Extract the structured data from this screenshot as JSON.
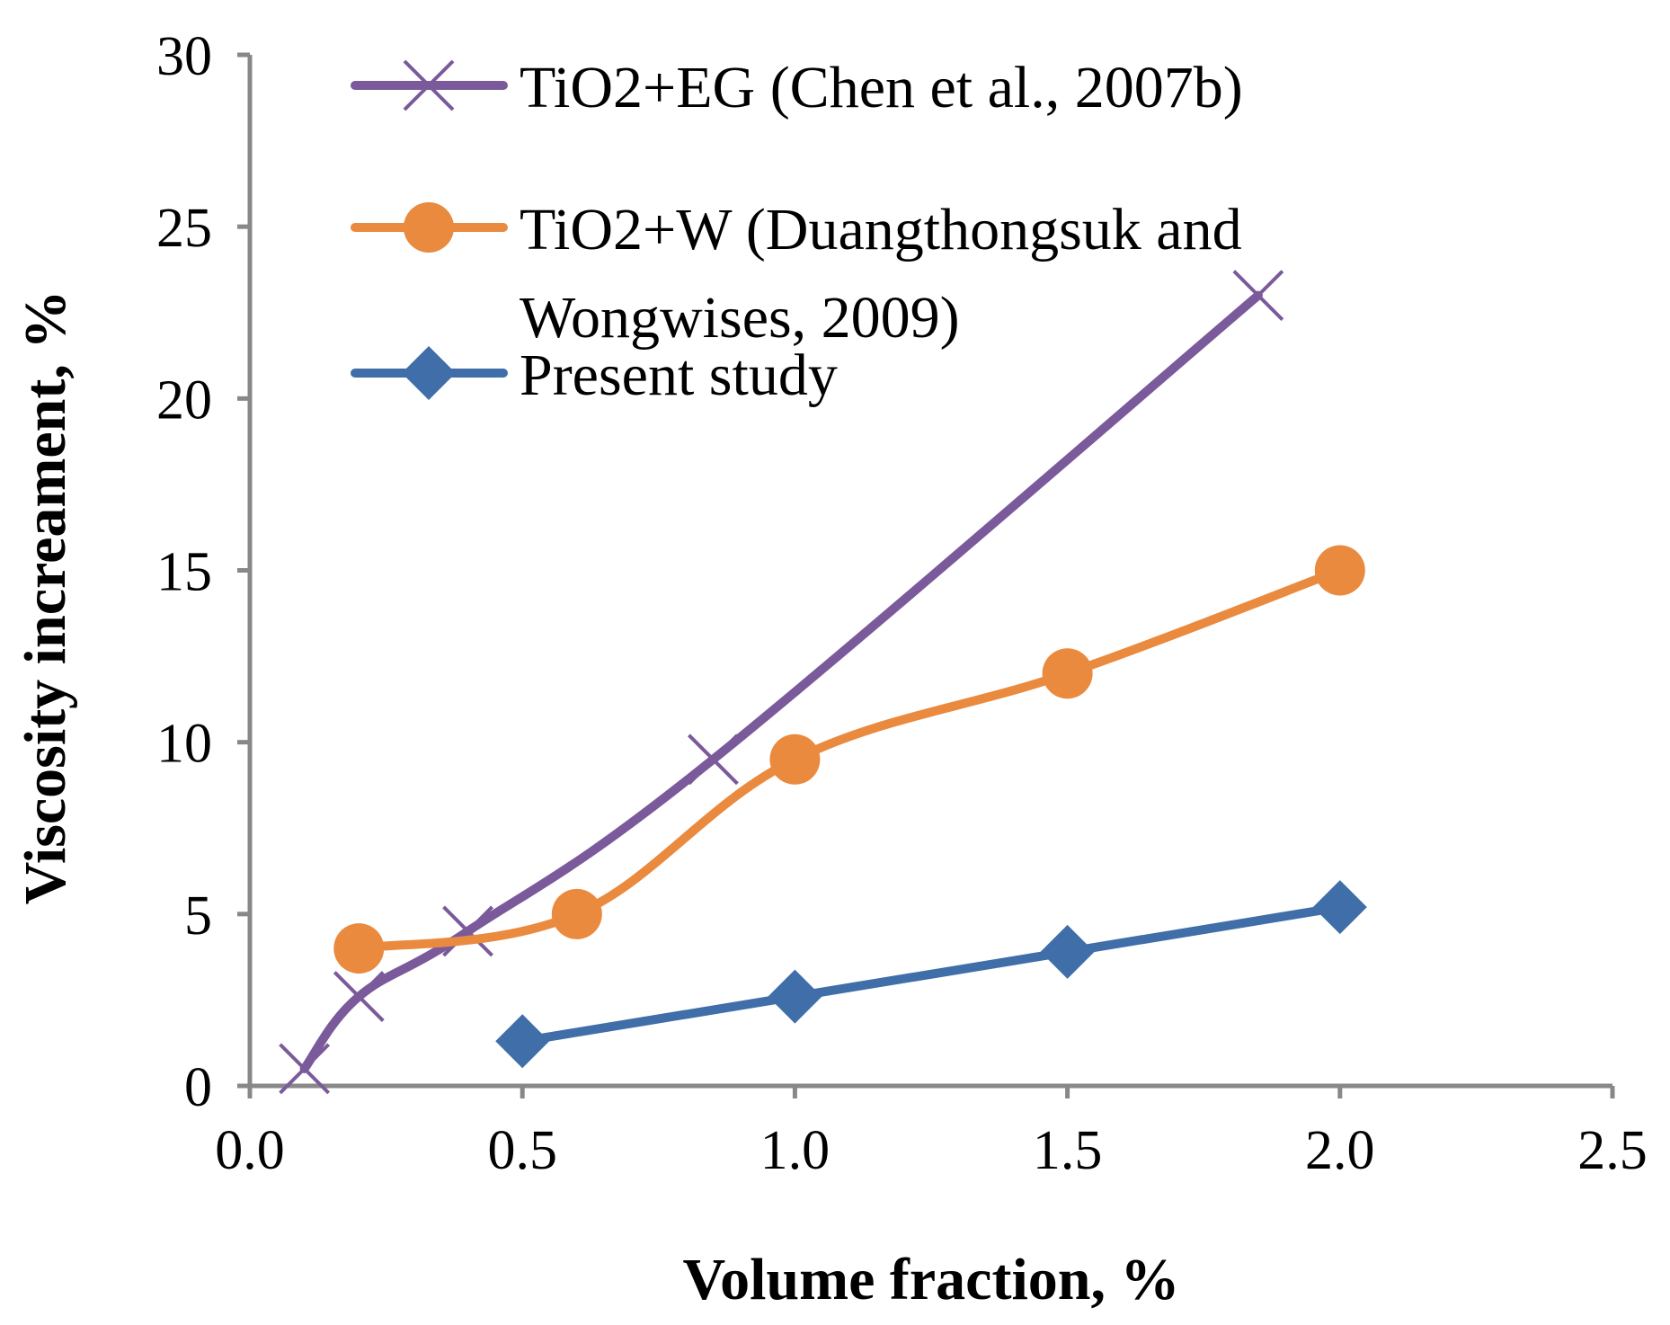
{
  "chart_data": {
    "type": "line",
    "title": "",
    "xlabel": "Volume fraction, %",
    "ylabel": "Viscosity increament, %",
    "xlim": [
      0,
      2.5
    ],
    "ylim": [
      0,
      30
    ],
    "xticks": [
      "0.0",
      "0.5",
      "1.0",
      "1.5",
      "2.0",
      "2.5"
    ],
    "yticks": [
      "0",
      "5",
      "10",
      "15",
      "20",
      "25",
      "30"
    ],
    "grid": false,
    "legend_position": "top-left",
    "series": [
      {
        "name": "TiO2+EG (Chen et al., 2007b)",
        "legend_lines": [
          "TiO2+EG (Chen et al., 2007b)"
        ],
        "color": "#7a5a9a",
        "marker": "x",
        "smooth": true,
        "points": [
          [
            0.1,
            0.5
          ],
          [
            0.2,
            2.6
          ],
          [
            0.4,
            4.5
          ],
          [
            0.85,
            9.5
          ],
          [
            1.85,
            23.0
          ]
        ]
      },
      {
        "name": "TiO2+W (Duangthongsuk and Wongwises, 2009)",
        "legend_lines": [
          "TiO2+W (Duangthongsuk and",
          "Wongwises, 2009)"
        ],
        "color": "#ea8a3f",
        "marker": "circle",
        "smooth": true,
        "points": [
          [
            0.2,
            4.0
          ],
          [
            0.6,
            5.0
          ],
          [
            1.0,
            9.5
          ],
          [
            1.5,
            12.0
          ],
          [
            2.0,
            15.0
          ]
        ]
      },
      {
        "name": "Present study",
        "legend_lines": [
          "Present study"
        ],
        "color": "#3f6ea8",
        "marker": "diamond",
        "smooth": false,
        "points": [
          [
            0.5,
            1.3
          ],
          [
            1.0,
            2.6
          ],
          [
            1.5,
            3.9
          ],
          [
            2.0,
            5.2
          ]
        ]
      }
    ]
  }
}
